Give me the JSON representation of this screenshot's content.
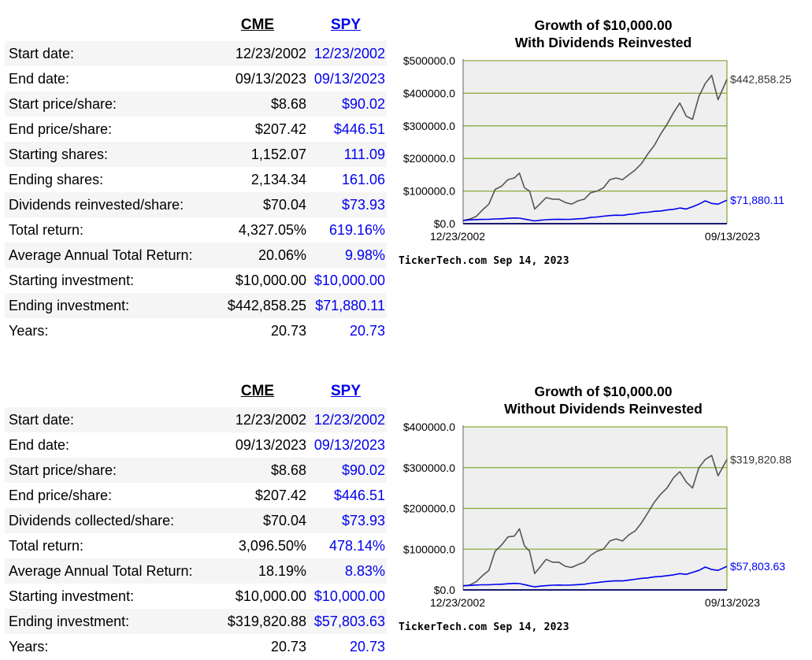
{
  "panels": [
    {
      "headers": {
        "cme": "CME",
        "spy": "SPY"
      },
      "rows": [
        {
          "label": "Start date:",
          "cme": "12/23/2002",
          "spy": "12/23/2002"
        },
        {
          "label": "End date:",
          "cme": "09/13/2023",
          "spy": "09/13/2023"
        },
        {
          "label": "Start price/share:",
          "cme": "$8.68",
          "spy": "$90.02"
        },
        {
          "label": "End price/share:",
          "cme": "$207.42",
          "spy": "$446.51"
        },
        {
          "label": "Starting shares:",
          "cme": "1,152.07",
          "spy": "111.09"
        },
        {
          "label": "Ending shares:",
          "cme": "2,134.34",
          "spy": "161.06"
        },
        {
          "label": "Dividends reinvested/share:",
          "cme": "$70.04",
          "spy": "$73.93"
        },
        {
          "label": "Total return:",
          "cme": "4,327.05%",
          "spy": "619.16%"
        },
        {
          "label": "Average Annual Total Return:",
          "cme": "20.06%",
          "spy": "9.98%"
        },
        {
          "label": "Starting investment:",
          "cme": "$10,000.00",
          "spy": "$10,000.00"
        },
        {
          "label": "Ending investment:",
          "cme": "$442,858.25",
          "spy": "$71,880.11"
        },
        {
          "label": "Years:",
          "cme": "20.73",
          "spy": "20.73"
        }
      ]
    },
    {
      "headers": {
        "cme": "CME",
        "spy": "SPY"
      },
      "rows": [
        {
          "label": "Start date:",
          "cme": "12/23/2002",
          "spy": "12/23/2002"
        },
        {
          "label": "End date:",
          "cme": "09/13/2023",
          "spy": "09/13/2023"
        },
        {
          "label": "Start price/share:",
          "cme": "$8.68",
          "spy": "$90.02"
        },
        {
          "label": "End price/share:",
          "cme": "$207.42",
          "spy": "$446.51"
        },
        {
          "label": "Dividends collected/share:",
          "cme": "$70.04",
          "spy": "$73.93"
        },
        {
          "label": "Total return:",
          "cme": "3,096.50%",
          "spy": "478.14%"
        },
        {
          "label": "Average Annual Total Return:",
          "cme": "18.19%",
          "spy": "8.83%"
        },
        {
          "label": "Starting investment:",
          "cme": "$10,000.00",
          "spy": "$10,000.00"
        },
        {
          "label": "Ending investment:",
          "cme": "$319,820.88",
          "spy": "$57,803.63"
        },
        {
          "label": "Years:",
          "cme": "20.73",
          "spy": "20.73"
        }
      ]
    }
  ],
  "chart_data": [
    {
      "type": "line",
      "title": "Growth of $10,000.00",
      "subtitle": "With Dividends Reinvested",
      "ylim": [
        0,
        500000
      ],
      "yticks": [
        "$0.0",
        "$100000.0",
        "$200000.0",
        "$300000.0",
        "$400000.0",
        "$500000.0"
      ],
      "ytick_values": [
        0,
        100000,
        200000,
        300000,
        400000,
        500000
      ],
      "x_start_label": "12/23/2002",
      "x_end_label": "09/13/2023",
      "x": [
        2002.98,
        2003.5,
        2004.0,
        2004.5,
        2005.0,
        2005.5,
        2006.0,
        2006.5,
        2007.0,
        2007.4,
        2007.8,
        2008.2,
        2008.6,
        2009.0,
        2009.5,
        2010.0,
        2010.5,
        2011.0,
        2011.5,
        2012.0,
        2012.5,
        2013.0,
        2013.5,
        2014.0,
        2014.5,
        2015.0,
        2015.5,
        2016.0,
        2016.5,
        2017.0,
        2017.5,
        2018.0,
        2018.5,
        2019.0,
        2019.5,
        2020.0,
        2020.5,
        2021.0,
        2021.5,
        2022.0,
        2022.5,
        2023.0,
        2023.7
      ],
      "series": [
        {
          "name": "CME",
          "color": "#555555",
          "values": [
            10000,
            14000,
            22000,
            42000,
            60000,
            105000,
            115000,
            135000,
            140000,
            155000,
            110000,
            100000,
            45000,
            60000,
            80000,
            75000,
            75000,
            65000,
            60000,
            70000,
            75000,
            95000,
            100000,
            110000,
            135000,
            140000,
            135000,
            150000,
            165000,
            185000,
            215000,
            240000,
            275000,
            305000,
            340000,
            370000,
            330000,
            320000,
            390000,
            430000,
            455000,
            380000,
            442858
          ]
        },
        {
          "name": "SPY",
          "color": "#0000ee",
          "values": [
            10000,
            11500,
            12500,
            13000,
            13500,
            14500,
            15000,
            16500,
            17500,
            17000,
            14000,
            11000,
            8500,
            10500,
            12000,
            13000,
            13500,
            13000,
            13500,
            15000,
            16000,
            19000,
            20500,
            23000,
            25000,
            26000,
            25500,
            28500,
            30500,
            33500,
            35000,
            38000,
            39000,
            42000,
            44000,
            48000,
            45000,
            52000,
            60000,
            70000,
            62000,
            60000,
            71880
          ]
        }
      ],
      "end_labels": {
        "CME": "$442,858.25",
        "SPY": "$71,880.11"
      },
      "footer": "TickerTech.com  Sep 14, 2023"
    },
    {
      "type": "line",
      "title": "Growth of $10,000.00",
      "subtitle": "Without Dividends Reinvested",
      "ylim": [
        0,
        400000
      ],
      "yticks": [
        "$0.0",
        "$100000.0",
        "$200000.0",
        "$300000.0",
        "$400000.0"
      ],
      "ytick_values": [
        0,
        100000,
        200000,
        300000,
        400000
      ],
      "x_start_label": "12/23/2002",
      "x_end_label": "09/13/2023",
      "x": [
        2002.98,
        2003.5,
        2004.0,
        2004.5,
        2005.0,
        2005.5,
        2006.0,
        2006.5,
        2007.0,
        2007.4,
        2007.8,
        2008.2,
        2008.6,
        2009.0,
        2009.5,
        2010.0,
        2010.5,
        2011.0,
        2011.5,
        2012.0,
        2012.5,
        2013.0,
        2013.5,
        2014.0,
        2014.5,
        2015.0,
        2015.5,
        2016.0,
        2016.5,
        2017.0,
        2017.5,
        2018.0,
        2018.5,
        2019.0,
        2019.5,
        2020.0,
        2020.5,
        2021.0,
        2021.5,
        2022.0,
        2022.5,
        2023.0,
        2023.7
      ],
      "series": [
        {
          "name": "CME",
          "color": "#555555",
          "values": [
            10000,
            12000,
            20000,
            35000,
            48000,
            95000,
            110000,
            130000,
            132000,
            150000,
            108000,
            95000,
            40000,
            55000,
            75000,
            68000,
            68000,
            58000,
            55000,
            62000,
            68000,
            85000,
            95000,
            100000,
            120000,
            125000,
            120000,
            135000,
            145000,
            165000,
            190000,
            215000,
            235000,
            250000,
            275000,
            290000,
            265000,
            250000,
            300000,
            320000,
            330000,
            280000,
            319820
          ]
        },
        {
          "name": "SPY",
          "color": "#0000ee",
          "values": [
            10000,
            11000,
            12000,
            12500,
            12500,
            13500,
            14000,
            15000,
            16000,
            15500,
            13000,
            10000,
            7500,
            9000,
            10500,
            11500,
            12000,
            11500,
            12000,
            13000,
            14000,
            16500,
            18000,
            20000,
            21500,
            22500,
            22000,
            24000,
            26000,
            28500,
            29500,
            32000,
            33000,
            35000,
            37000,
            40000,
            38000,
            43000,
            48000,
            56000,
            50000,
            48000,
            57803
          ]
        }
      ],
      "end_labels": {
        "CME": "$319,820.88",
        "SPY": "$57,803.63"
      },
      "footer": "TickerTech.com  Sep 14, 2023"
    }
  ]
}
